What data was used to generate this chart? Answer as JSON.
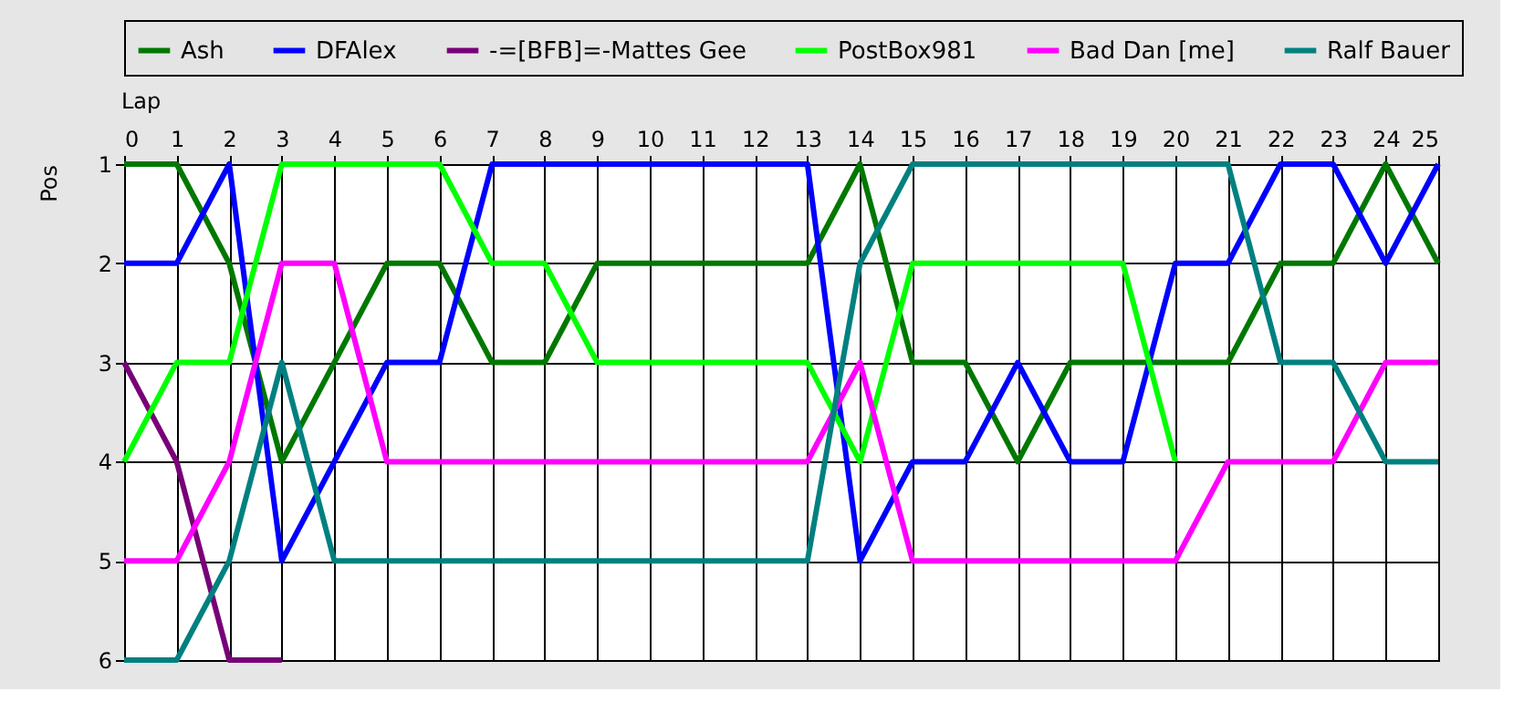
{
  "chart_data": {
    "type": "line",
    "xlabel": "Lap",
    "ylabel": "Pos",
    "x": [
      0,
      1,
      2,
      3,
      4,
      5,
      6,
      7,
      8,
      9,
      10,
      11,
      12,
      13,
      14,
      15,
      16,
      17,
      18,
      19,
      20,
      21,
      22,
      23,
      24,
      25
    ],
    "xlim": [
      0,
      25
    ],
    "xticks": [
      0,
      1,
      2,
      3,
      4,
      5,
      6,
      7,
      8,
      9,
      10,
      11,
      12,
      13,
      14,
      15,
      16,
      17,
      18,
      19,
      20,
      21,
      22,
      23,
      24,
      25
    ],
    "ylim": [
      6,
      1
    ],
    "yticks": [
      1,
      2,
      3,
      4,
      5,
      6
    ],
    "grid": true,
    "legend": "top",
    "marker": "none",
    "line_style": "solid",
    "series": [
      {
        "name": "Ash",
        "color": "#007800",
        "values": [
          1,
          1,
          2,
          4,
          3,
          2,
          2,
          3,
          3,
          2,
          2,
          2,
          2,
          2,
          1,
          3,
          3,
          4,
          3,
          3,
          3,
          3,
          2,
          2,
          1,
          2
        ]
      },
      {
        "name": "DFAlex",
        "color": "#0000ff",
        "values": [
          2,
          2,
          1,
          5,
          4,
          3,
          3,
          1,
          1,
          1,
          1,
          1,
          1,
          1,
          5,
          4,
          4,
          3,
          4,
          4,
          2,
          2,
          1,
          1,
          2,
          1
        ]
      },
      {
        "name": "-=[BFB]=-Mattes Gee",
        "color": "#780078",
        "values": [
          3,
          4,
          6,
          6,
          null,
          null,
          null,
          null,
          null,
          null,
          null,
          null,
          null,
          null,
          null,
          null,
          null,
          null,
          null,
          null,
          null,
          null,
          null,
          null,
          null,
          null
        ]
      },
      {
        "name": "PostBox981",
        "color": "#00ff00",
        "values": [
          4,
          3,
          3,
          1,
          1,
          1,
          1,
          2,
          2,
          3,
          3,
          3,
          3,
          3,
          4,
          2,
          2,
          2,
          2,
          2,
          4,
          null,
          null,
          null,
          null,
          null
        ]
      },
      {
        "name": "Bad Dan [me]",
        "color": "#ff00ff",
        "values": [
          5,
          5,
          4,
          2,
          2,
          4,
          4,
          4,
          4,
          4,
          4,
          4,
          4,
          4,
          3,
          5,
          5,
          5,
          5,
          5,
          5,
          4,
          4,
          4,
          3,
          3
        ]
      },
      {
        "name": "Ralf Bauer",
        "color": "#008080",
        "values": [
          6,
          6,
          5,
          3,
          5,
          5,
          5,
          5,
          5,
          5,
          5,
          5,
          5,
          5,
          2,
          1,
          1,
          1,
          1,
          1,
          1,
          1,
          3,
          3,
          4,
          4
        ]
      }
    ]
  }
}
